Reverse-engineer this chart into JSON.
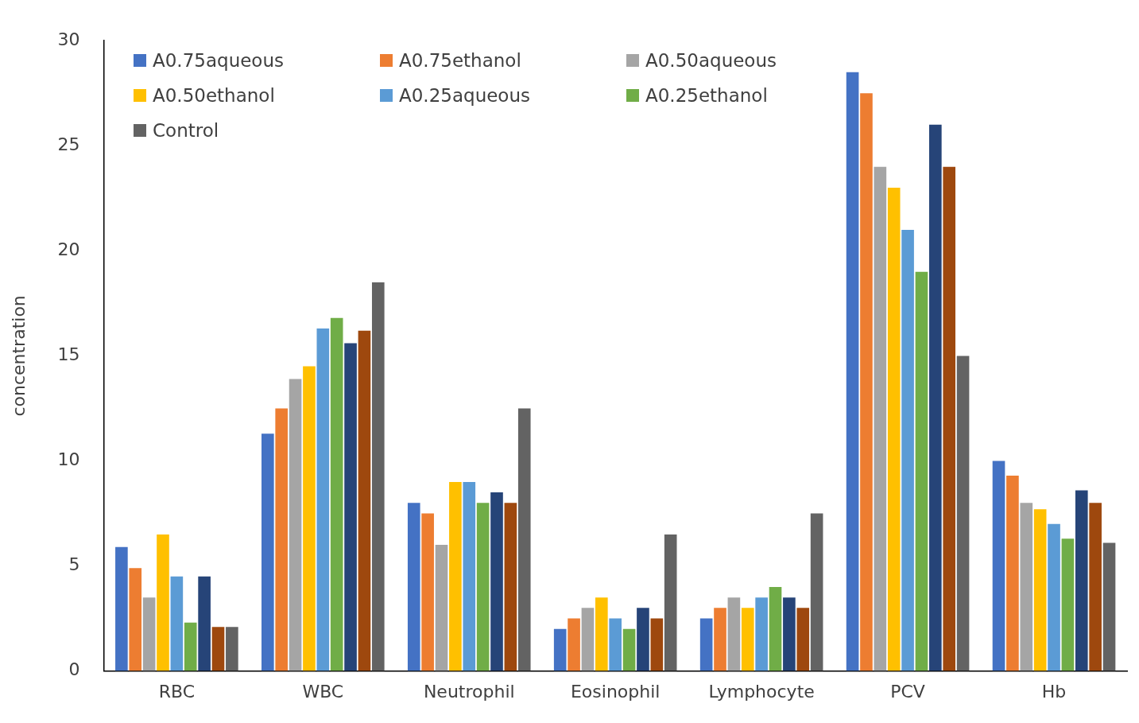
{
  "chart_data": {
    "type": "bar",
    "ylabel": "concentration",
    "categories": [
      "RBC",
      "WBC",
      "Neutrophil",
      "Eosinophil",
      "Lymphocyte",
      "PCV",
      "Hb"
    ],
    "series": [
      {
        "name": "A0.75aqueous",
        "color": "#4472c4",
        "values": [
          5.9,
          11.3,
          8,
          2,
          2.5,
          28.5,
          10
        ]
      },
      {
        "name": "A0.75ethanol",
        "color": "#ed7d31",
        "values": [
          4.9,
          12.5,
          7.5,
          2.5,
          3,
          27.5,
          9.3
        ]
      },
      {
        "name": "A0.50aqueous",
        "color": "#a5a5a5",
        "values": [
          3.5,
          13.9,
          6,
          3,
          3.5,
          24,
          8
        ]
      },
      {
        "name": "A0.50ethanol",
        "color": "#ffc000",
        "values": [
          6.5,
          14.5,
          9,
          3.5,
          3,
          23,
          7.7
        ]
      },
      {
        "name": "A0.25aqueous",
        "color": "#5b9bd5",
        "values": [
          4.5,
          16.3,
          9,
          2.5,
          3.5,
          21,
          7
        ]
      },
      {
        "name": "A0.25ethanol",
        "color": "#70ad47",
        "values": [
          2.3,
          16.8,
          8,
          2,
          4,
          19,
          6.3
        ]
      },
      {
        "color": "#264478",
        "values": [
          4.5,
          15.6,
          8.5,
          3,
          3.5,
          26,
          8.6
        ]
      },
      {
        "color": "#9e480e",
        "values": [
          2.1,
          16.2,
          8,
          2.5,
          3,
          24,
          8
        ]
      },
      {
        "name": "Control",
        "color": "#636363",
        "values": [
          2.1,
          18.5,
          12.5,
          6.5,
          7.5,
          15,
          6.1
        ]
      }
    ],
    "ylim": [
      0,
      30
    ],
    "yticks": [
      0,
      5,
      10,
      15,
      20,
      25,
      30
    ],
    "grid": false,
    "legend": "top left"
  }
}
